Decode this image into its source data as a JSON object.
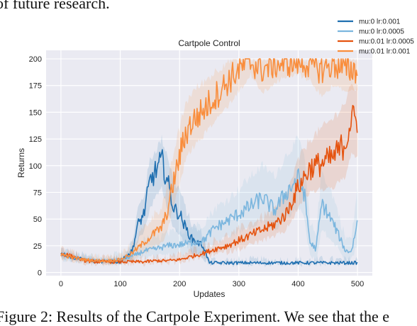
{
  "document": {
    "top_text": "of future research.",
    "bottom_text": "Figure 2: Results of the Cartpole Experiment. We see that the e"
  },
  "chart_data": {
    "type": "line",
    "title": "Cartpole Control",
    "xlabel": "Updates",
    "ylabel": "Returns",
    "xlim": [
      -25,
      525
    ],
    "ylim": [
      -3,
      208
    ],
    "xticks": [
      0,
      100,
      200,
      300,
      400,
      500
    ],
    "yticks": [
      0,
      25,
      50,
      75,
      100,
      125,
      150,
      175,
      200
    ],
    "grid": true,
    "legend_placement": "top-right",
    "series": [
      {
        "name": "mu:0 lr:0.001",
        "color": "#1f6fb0",
        "x": [
          0,
          20,
          40,
          60,
          80,
          100,
          120,
          130,
          140,
          150,
          160,
          170,
          180,
          190,
          200,
          210,
          220,
          230,
          240,
          250,
          300,
          350,
          400,
          450,
          500
        ],
        "y": [
          18,
          14,
          12,
          10,
          10,
          10,
          20,
          45,
          55,
          85,
          95,
          105,
          85,
          60,
          55,
          42,
          32,
          28,
          25,
          9,
          9,
          9,
          9,
          9,
          9
        ],
        "band": [
          [
            15,
            22
          ],
          [
            11,
            17
          ],
          [
            10,
            15
          ],
          [
            9,
            12
          ],
          [
            9,
            12
          ],
          [
            9,
            12
          ],
          [
            14,
            28
          ],
          [
            30,
            60
          ],
          [
            38,
            72
          ],
          [
            60,
            105
          ],
          [
            70,
            115
          ],
          [
            80,
            125
          ],
          [
            60,
            110
          ],
          [
            40,
            85
          ],
          [
            35,
            78
          ],
          [
            28,
            60
          ],
          [
            20,
            46
          ],
          [
            18,
            40
          ],
          [
            14,
            36
          ],
          [
            8,
            11
          ],
          [
            8,
            11
          ],
          [
            8,
            11
          ],
          [
            8,
            11
          ],
          [
            8,
            11
          ],
          [
            8,
            11
          ]
        ]
      },
      {
        "name": "mu:0 lr:0.0005",
        "color": "#7bb6de",
        "x": [
          0,
          20,
          40,
          60,
          80,
          100,
          120,
          140,
          160,
          180,
          200,
          220,
          240,
          260,
          280,
          300,
          320,
          340,
          360,
          380,
          400,
          410,
          420,
          430,
          440,
          460,
          480,
          490,
          500
        ],
        "y": [
          17,
          14,
          12,
          11,
          11,
          12,
          15,
          20,
          22,
          25,
          26,
          28,
          30,
          42,
          48,
          55,
          62,
          70,
          58,
          75,
          88,
          75,
          28,
          22,
          65,
          45,
          20,
          20,
          48
        ],
        "band": [
          [
            13,
            21
          ],
          [
            11,
            17
          ],
          [
            10,
            15
          ],
          [
            9,
            14
          ],
          [
            9,
            14
          ],
          [
            9,
            16
          ],
          [
            11,
            22
          ],
          [
            14,
            30
          ],
          [
            15,
            32
          ],
          [
            16,
            36
          ],
          [
            17,
            38
          ],
          [
            18,
            42
          ],
          [
            19,
            46
          ],
          [
            28,
            60
          ],
          [
            32,
            68
          ],
          [
            38,
            78
          ],
          [
            42,
            90
          ],
          [
            48,
            100
          ],
          [
            40,
            90
          ],
          [
            50,
            110
          ],
          [
            62,
            125
          ],
          [
            50,
            110
          ],
          [
            16,
            44
          ],
          [
            12,
            38
          ],
          [
            40,
            95
          ],
          [
            28,
            70
          ],
          [
            12,
            32
          ],
          [
            12,
            32
          ],
          [
            28,
            80
          ]
        ]
      },
      {
        "name": "mu:0.01 lr:0.0005",
        "color": "#e5530f",
        "x": [
          0,
          20,
          40,
          60,
          80,
          100,
          120,
          140,
          160,
          180,
          200,
          220,
          240,
          260,
          280,
          300,
          320,
          340,
          360,
          380,
          400,
          420,
          440,
          460,
          480,
          490,
          500
        ],
        "y": [
          18,
          15,
          11,
          10,
          10,
          10,
          10,
          10,
          11,
          11,
          12,
          15,
          18,
          22,
          25,
          30,
          35,
          40,
          45,
          55,
          80,
          98,
          102,
          108,
          122,
          145,
          142
        ],
        "band": [
          [
            15,
            22
          ],
          [
            12,
            18
          ],
          [
            9,
            13
          ],
          [
            8,
            12
          ],
          [
            8,
            12
          ],
          [
            8,
            12
          ],
          [
            8,
            12
          ],
          [
            8,
            12
          ],
          [
            9,
            13
          ],
          [
            9,
            14
          ],
          [
            10,
            16
          ],
          [
            12,
            20
          ],
          [
            14,
            24
          ],
          [
            17,
            30
          ],
          [
            19,
            34
          ],
          [
            22,
            40
          ],
          [
            26,
            46
          ],
          [
            30,
            52
          ],
          [
            33,
            58
          ],
          [
            40,
            72
          ],
          [
            60,
            105
          ],
          [
            75,
            125
          ],
          [
            78,
            135
          ],
          [
            80,
            145
          ],
          [
            90,
            160
          ],
          [
            110,
            175
          ],
          [
            108,
            172
          ]
        ]
      },
      {
        "name": "mu:0.01 lr:0.001",
        "color": "#f98d3c",
        "x": [
          0,
          20,
          40,
          60,
          80,
          100,
          120,
          140,
          160,
          170,
          180,
          190,
          200,
          210,
          220,
          240,
          260,
          280,
          300,
          320,
          340,
          360,
          380,
          400,
          420,
          440,
          460,
          480,
          500
        ],
        "y": [
          17,
          14,
          12,
          11,
          11,
          12,
          18,
          28,
          38,
          42,
          58,
          85,
          108,
          130,
          140,
          152,
          165,
          178,
          190,
          197,
          190,
          195,
          196,
          197,
          195,
          190,
          195,
          190,
          190
        ],
        "band": [
          [
            13,
            21
          ],
          [
            11,
            17
          ],
          [
            10,
            15
          ],
          [
            9,
            14
          ],
          [
            9,
            14
          ],
          [
            9,
            16
          ],
          [
            12,
            26
          ],
          [
            18,
            42
          ],
          [
            24,
            56
          ],
          [
            28,
            62
          ],
          [
            40,
            82
          ],
          [
            62,
            112
          ],
          [
            82,
            135
          ],
          [
            105,
            158
          ],
          [
            115,
            168
          ],
          [
            128,
            178
          ],
          [
            142,
            188
          ],
          [
            155,
            198
          ],
          [
            170,
            200
          ],
          [
            185,
            200
          ],
          [
            168,
            200
          ],
          [
            178,
            200
          ],
          [
            182,
            200
          ],
          [
            186,
            200
          ],
          [
            180,
            200
          ],
          [
            165,
            200
          ],
          [
            176,
            200
          ],
          [
            170,
            200
          ],
          [
            168,
            200
          ]
        ]
      }
    ]
  }
}
